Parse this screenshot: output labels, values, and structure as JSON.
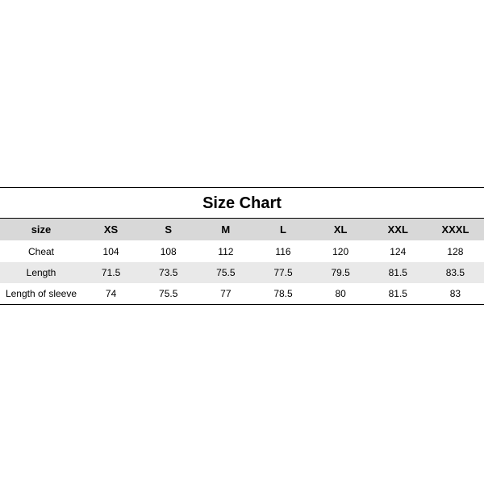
{
  "chart": {
    "type": "table",
    "title": "Size Chart",
    "title_fontsize": 20,
    "header_fontsize": 13,
    "cell_fontsize": 12,
    "colors": {
      "background": "#ffffff",
      "header_bg": "#d8d8d8",
      "alt_row_bg": "#e9e9e9",
      "border": "#000000",
      "text": "#000000"
    },
    "columns": [
      "size",
      "XS",
      "S",
      "M",
      "L",
      "XL",
      "XXL",
      "XXXL"
    ],
    "col_widths_pct": [
      17,
      11.857,
      11.857,
      11.857,
      11.857,
      11.857,
      11.857,
      11.857
    ],
    "rows": [
      {
        "label": "Cheat",
        "values": [
          "104",
          "108",
          "112",
          "116",
          "120",
          "124",
          "128"
        ]
      },
      {
        "label": "Length",
        "values": [
          "71.5",
          "73.5",
          "75.5",
          "77.5",
          "79.5",
          "81.5",
          "83.5"
        ]
      },
      {
        "label": "Length of sleeve",
        "values": [
          "74",
          "75.5",
          "77",
          "78.5",
          "80",
          "81.5",
          "83"
        ]
      }
    ]
  }
}
